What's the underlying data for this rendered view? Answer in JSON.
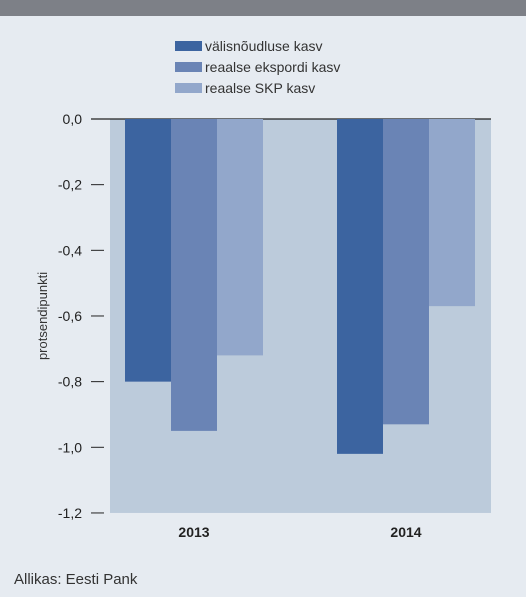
{
  "chart_data": {
    "type": "bar",
    "title": "",
    "xlabel": "",
    "ylabel": "protsendipunkti",
    "categories": [
      "2013",
      "2014"
    ],
    "series": [
      {
        "name": "välisnõudluse kasv",
        "color": "#3c64a0",
        "values": [
          -0.8,
          -1.02
        ]
      },
      {
        "name": "reaalse ekspordi kasv",
        "color": "#6a84b5",
        "values": [
          -0.95,
          -0.93
        ]
      },
      {
        "name": "reaalse SKP kasv",
        "color": "#92a7cb",
        "values": [
          -0.72,
          -0.57
        ]
      }
    ],
    "ylim": [
      -1.2,
      0.0
    ],
    "yticks": [
      0.0,
      -0.2,
      -0.4,
      -0.6,
      -0.8,
      -1.0,
      -1.2
    ],
    "ytick_labels": [
      "0,0",
      "-0,2",
      "-0,4",
      "-0,6",
      "-0,8",
      "-1,0",
      "-1,2"
    ],
    "legend_position": "top",
    "grid": false
  },
  "plot_background_color": "#bccbdb",
  "page_background_color": "#e6ebf1",
  "source": "Allikas: Eesti Pank"
}
